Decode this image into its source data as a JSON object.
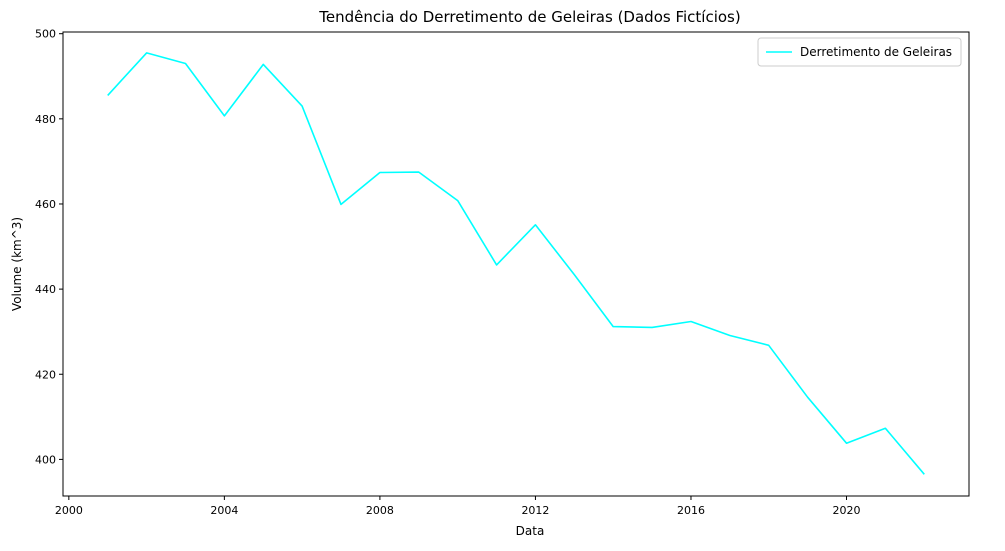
{
  "chart_data": {
    "type": "line",
    "title": "Tendência do Derretimento de Geleiras (Dados Fictícios)",
    "xlabel": "Data",
    "ylabel": "Volume (km^3)",
    "x_ticks": [
      "2000",
      "2004",
      "2008",
      "2012",
      "2016",
      "2020"
    ],
    "y_ticks": [
      "400",
      "420",
      "440",
      "460",
      "480",
      "500"
    ],
    "xlim": [
      1999.85,
      2023.15
    ],
    "ylim": [
      391.4,
      500.4
    ],
    "grid": false,
    "legend_position": "top-right",
    "series": [
      {
        "name": "Derretimento de Geleiras",
        "color": "#00ffff",
        "x": [
          2001,
          2002,
          2003,
          2004,
          2005,
          2006,
          2007,
          2008,
          2009,
          2010,
          2011,
          2012,
          2013,
          2014,
          2015,
          2016,
          2017,
          2018,
          2019,
          2020,
          2021,
          2022
        ],
        "y": [
          485.5,
          495.5,
          493.0,
          480.7,
          492.8,
          483.0,
          459.9,
          467.4,
          467.5,
          460.8,
          445.7,
          455.1,
          443.4,
          431.2,
          431.0,
          432.4,
          429.1,
          426.8,
          414.6,
          403.8,
          407.3,
          396.5
        ]
      }
    ]
  }
}
